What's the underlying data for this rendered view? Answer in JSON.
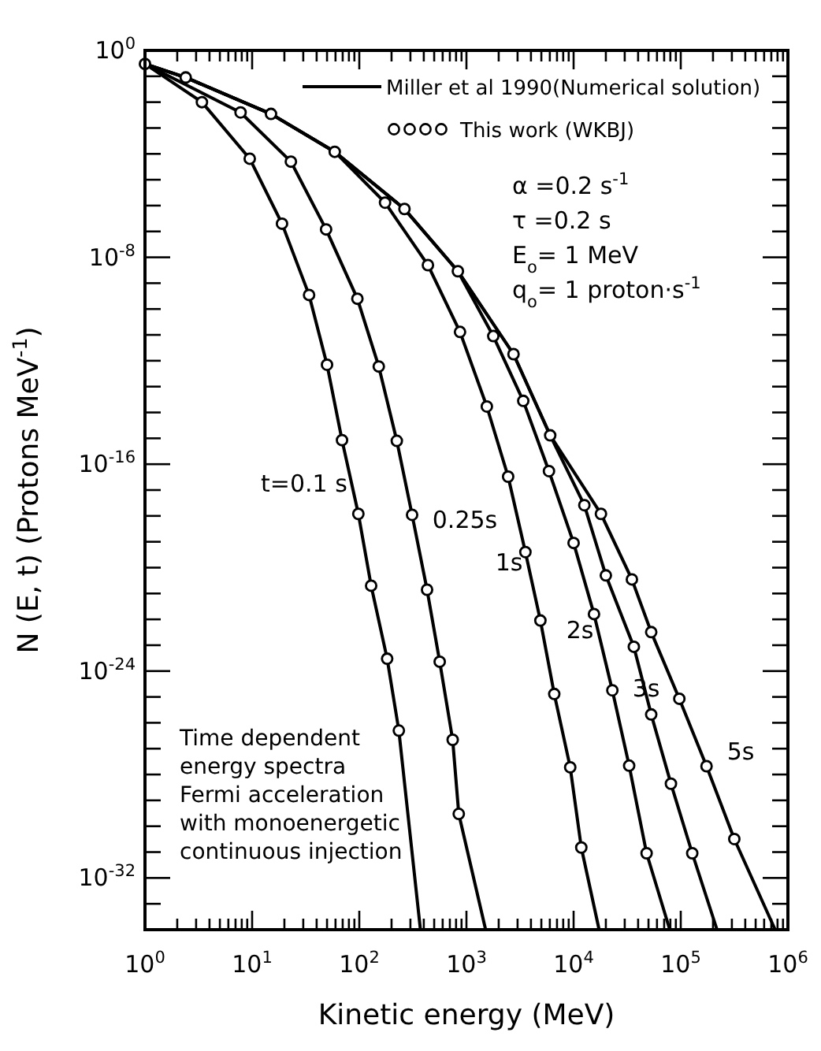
{
  "chart_data": {
    "type": "line",
    "xlabel": "Kinetic energy (MeV)",
    "ylabel": "N (E, t) (Protons MeV$^{-1}$)",
    "log": "xy",
    "grid": false,
    "legend": "top right",
    "xlim": [
      1,
      1000000
    ],
    "ylim": [
      1e-34,
      1
    ],
    "xticks": [
      {
        "value": 1,
        "label": "10$^{0}$"
      },
      {
        "value": 2,
        "label": null
      },
      {
        "value": 3,
        "label": null
      },
      {
        "value": 4,
        "label": null
      },
      {
        "value": 5,
        "label": null
      },
      {
        "value": 6,
        "label": null
      },
      {
        "value": 7,
        "label": null
      },
      {
        "value": 8,
        "label": null
      },
      {
        "value": 9,
        "label": null
      },
      {
        "value": 10,
        "label": "10$^{1}$"
      },
      {
        "value": 20,
        "label": null
      },
      {
        "value": 30,
        "label": null
      },
      {
        "value": 40,
        "label": null
      },
      {
        "value": 50,
        "label": null
      },
      {
        "value": 60,
        "label": null
      },
      {
        "value": 70,
        "label": null
      },
      {
        "value": 80,
        "label": null
      },
      {
        "value": 90,
        "label": null
      },
      {
        "value": 100,
        "label": "10$^{2}$"
      },
      {
        "value": 200,
        "label": null
      },
      {
        "value": 300,
        "label": null
      },
      {
        "value": 400,
        "label": null
      },
      {
        "value": 500,
        "label": null
      },
      {
        "value": 600,
        "label": null
      },
      {
        "value": 700,
        "label": null
      },
      {
        "value": 800,
        "label": null
      },
      {
        "value": 900,
        "label": null
      },
      {
        "value": 1000,
        "label": "10$^{3}$"
      },
      {
        "value": 2000,
        "label": null
      },
      {
        "value": 3000,
        "label": null
      },
      {
        "value": 4000,
        "label": null
      },
      {
        "value": 5000,
        "label": null
      },
      {
        "value": 6000,
        "label": null
      },
      {
        "value": 7000,
        "label": null
      },
      {
        "value": 8000,
        "label": null
      },
      {
        "value": 9000,
        "label": null
      },
      {
        "value": 10000,
        "label": "10$^{4}$"
      },
      {
        "value": 20000,
        "label": null
      },
      {
        "value": 30000,
        "label": null
      },
      {
        "value": 40000,
        "label": null
      },
      {
        "value": 50000,
        "label": null
      },
      {
        "value": 60000,
        "label": null
      },
      {
        "value": 70000,
        "label": null
      },
      {
        "value": 80000,
        "label": null
      },
      {
        "value": 90000,
        "label": null
      },
      {
        "value": 100000,
        "label": "10$^{5}$"
      },
      {
        "value": 200000,
        "label": null
      },
      {
        "value": 300000,
        "label": null
      },
      {
        "value": 400000,
        "label": null
      },
      {
        "value": 500000,
        "label": null
      },
      {
        "value": 600000,
        "label": null
      },
      {
        "value": 700000,
        "label": null
      },
      {
        "value": 800000,
        "label": null
      },
      {
        "value": 900000,
        "label": null
      },
      {
        "value": 1000000,
        "label": "10$^{6}$"
      }
    ],
    "yticks": [
      {
        "value": 1,
        "label": "10$^{0}$"
      },
      {
        "value": 0.1,
        "label": null
      },
      {
        "value": 0.01,
        "label": null
      },
      {
        "value": 0.001,
        "label": null
      },
      {
        "value": 0.0001,
        "label": null
      },
      {
        "value": 1e-05,
        "label": null
      },
      {
        "value": 1e-06,
        "label": null
      },
      {
        "value": 1e-07,
        "label": null
      },
      {
        "value": 1e-08,
        "label": "10$^{-8}$"
      },
      {
        "value": 1e-09,
        "label": null
      },
      {
        "value": 1e-10,
        "label": null
      },
      {
        "value": 1e-11,
        "label": null
      },
      {
        "value": 1e-12,
        "label": null
      },
      {
        "value": 1e-13,
        "label": null
      },
      {
        "value": 1e-14,
        "label": null
      },
      {
        "value": 1e-15,
        "label": null
      },
      {
        "value": 1e-16,
        "label": "10$^{-16}$"
      },
      {
        "value": 1e-17,
        "label": null
      },
      {
        "value": 1e-18,
        "label": null
      },
      {
        "value": 1e-19,
        "label": null
      },
      {
        "value": 1e-20,
        "label": null
      },
      {
        "value": 1e-21,
        "label": null
      },
      {
        "value": 1e-22,
        "label": null
      },
      {
        "value": 1e-23,
        "label": null
      },
      {
        "value": 1e-24,
        "label": "10$^{-24}$"
      },
      {
        "value": 1e-25,
        "label": null
      },
      {
        "value": 1e-26,
        "label": null
      },
      {
        "value": 1e-27,
        "label": null
      },
      {
        "value": 1e-28,
        "label": null
      },
      {
        "value": 1e-29,
        "label": null
      },
      {
        "value": 1e-30,
        "label": null
      },
      {
        "value": 1e-31,
        "label": null
      },
      {
        "value": 1e-32,
        "label": "10$^{-32}$"
      },
      {
        "value": 1e-33,
        "label": null
      }
    ],
    "series": [
      {
        "name": "Miller et al 1990(Numerical solution)",
        "color": "#000000",
        "marker": "none",
        "x": [
          1,
          3.4,
          9.5,
          19,
          34,
          50,
          69,
          98,
          129,
          182,
          234,
          372
        ],
        "values": [
          0.3,
          0.01,
          6.5e-05,
          2e-07,
          3.5e-10,
          7e-13,
          8.5e-16,
          1.2e-18,
          2e-21,
          3e-24,
          5e-27,
          1e-34
        ]
      },
      {
        "color": "#000000",
        "marker": "none",
        "x": [
          1,
          7.8,
          23,
          49,
          96,
          152,
          224,
          311,
          429,
          563,
          744,
          848,
          1510
        ],
        "values": [
          0.3,
          0.004,
          5e-05,
          1.2e-07,
          2.5e-10,
          6e-13,
          8e-16,
          1.1e-18,
          1.4e-21,
          2.3e-24,
          2.2e-27,
          3e-30,
          1e-34
        ]
      },
      {
        "color": "#000000",
        "marker": "none",
        "x": [
          1,
          2.4,
          15,
          59,
          174,
          437,
          871,
          1550,
          2450,
          3550,
          4900,
          6600,
          9300,
          11800,
          17300
        ],
        "values": [
          0.3,
          0.09,
          0.0035,
          0.00012,
          1.3e-06,
          5e-09,
          1.3e-11,
          1.7e-14,
          3.3e-17,
          4e-20,
          9e-23,
          1.3e-25,
          1.9e-28,
          1.5e-31,
          1e-34
        ]
      },
      {
        "color": "#000000",
        "marker": "none",
        "x": [
          1,
          2.4,
          15,
          59,
          264,
          832,
          1780,
          3390,
          5890,
          10000,
          15500,
          23000,
          33000,
          48000,
          79000
        ],
        "values": [
          0.3,
          0.09,
          0.0035,
          0.00012,
          7.4e-07,
          2.9e-09,
          9e-12,
          2.8e-14,
          5.4e-17,
          9e-20,
          1.6e-22,
          1.8e-25,
          2.2e-28,
          9e-32,
          1e-34
        ]
      },
      {
        "color": "#000000",
        "marker": "none",
        "x": [
          1,
          2.4,
          15,
          59,
          264,
          832,
          2750,
          6050,
          12600,
          20000,
          36500,
          53000,
          81000,
          128000,
          218000
        ],
        "values": [
          0.3,
          0.09,
          0.0035,
          0.00012,
          7.4e-07,
          2.9e-09,
          1.8e-12,
          1.3e-15,
          2.6e-18,
          5e-21,
          8.7e-24,
          2.1e-26,
          4.4e-29,
          9e-32,
          1e-34
        ]
      },
      {
        "color": "#000000",
        "marker": "none",
        "x": [
          1,
          2.4,
          15,
          59,
          264,
          832,
          2750,
          6050,
          18000,
          35000,
          53000,
          97000,
          174000,
          316000,
          760000
        ],
        "values": [
          0.3,
          0.09,
          0.0035,
          0.00012,
          7.4e-07,
          2.9e-09,
          1.8e-12,
          1.3e-15,
          1.2e-18,
          3.5e-21,
          3.2e-23,
          8.5e-26,
          2.1e-28,
          3.2e-31,
          1e-34
        ]
      },
      {
        "type": "scatter",
        "name": "This work (WKBJ)",
        "color": "#000000",
        "marker": "circle",
        "x": [
          1,
          3.4,
          9.5,
          19,
          34,
          50,
          69,
          98,
          129,
          182,
          234,
          7.8,
          23,
          49,
          96,
          152,
          224,
          311,
          429,
          563,
          744,
          848,
          2.4,
          15,
          59,
          174,
          437,
          871,
          1550,
          2450,
          3550,
          4900,
          6600,
          9300,
          11800,
          264,
          832,
          1780,
          3390,
          5890,
          10000,
          15500,
          23000,
          33000,
          48000,
          2750,
          6050,
          12600,
          20000,
          36500,
          53000,
          81000,
          128000,
          18000,
          35000,
          53000,
          97000,
          174000,
          316000
        ],
        "values": [
          0.3,
          0.01,
          6.5e-05,
          2e-07,
          3.5e-10,
          7e-13,
          8.5e-16,
          1.2e-18,
          2e-21,
          3e-24,
          5e-27,
          0.004,
          5e-05,
          1.2e-07,
          2.5e-10,
          6e-13,
          8e-16,
          1.1e-18,
          1.4e-21,
          2.3e-24,
          2.2e-27,
          3e-30,
          0.09,
          0.0035,
          0.00012,
          1.3e-06,
          5e-09,
          1.3e-11,
          1.7e-14,
          3.3e-17,
          4e-20,
          9e-23,
          1.3e-25,
          1.9e-28,
          1.5e-31,
          7.4e-07,
          2.9e-09,
          9e-12,
          2.8e-14,
          5.4e-17,
          9e-20,
          1.6e-22,
          1.8e-25,
          2.2e-28,
          9e-32,
          1.8e-12,
          1.3e-15,
          2.6e-18,
          5e-21,
          8.7e-24,
          2.1e-26,
          4.4e-29,
          9e-32,
          1.2e-18,
          3.5e-21,
          3.2e-23,
          8.5e-26,
          2.1e-28,
          3.2e-31
        ]
      }
    ],
    "annotations": [
      "t=0.1 s",
      "0.25s",
      "1s",
      "2s",
      "3s",
      "5s",
      "α =0.2 s$^{-1}$",
      "τ =0.2 s",
      "E$_{o}$= 1 MeV",
      "q$_{o}$= 1 proton·s$^{-1}$",
      "Time dependent\nenergy spectra\nFermi acceleration\nwith monoenergetic\ncontinuous injection"
    ]
  }
}
